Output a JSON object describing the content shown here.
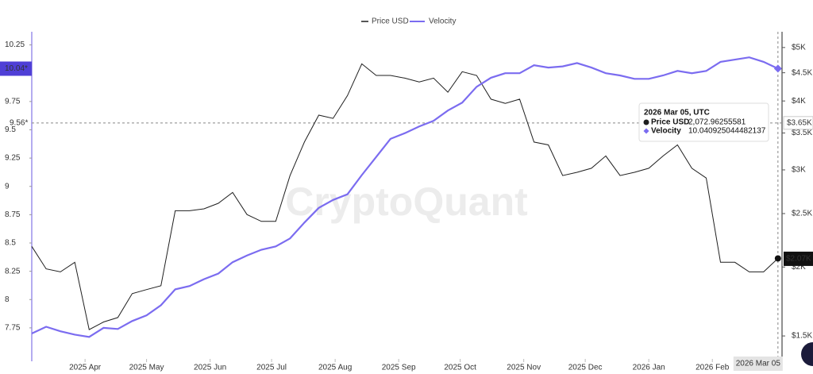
{
  "chart_data": {
    "type": "line",
    "watermark": "CryptoQuant",
    "x": [
      "2025-03-06",
      "2025-03-13",
      "2025-03-20",
      "2025-03-27",
      "2025-04-03",
      "2025-04-10",
      "2025-04-17",
      "2025-04-24",
      "2025-05-01",
      "2025-05-08",
      "2025-05-15",
      "2025-05-22",
      "2025-05-29",
      "2025-06-05",
      "2025-06-12",
      "2025-06-19",
      "2025-06-26",
      "2025-07-03",
      "2025-07-10",
      "2025-07-17",
      "2025-07-24",
      "2025-07-31",
      "2025-08-07",
      "2025-08-14",
      "2025-08-21",
      "2025-08-28",
      "2025-09-04",
      "2025-09-11",
      "2025-09-18",
      "2025-09-25",
      "2025-10-02",
      "2025-10-09",
      "2025-10-16",
      "2025-10-23",
      "2025-10-30",
      "2025-11-06",
      "2025-11-13",
      "2025-11-20",
      "2025-11-27",
      "2025-12-04",
      "2025-12-11",
      "2025-12-18",
      "2025-12-25",
      "2026-01-01",
      "2026-01-08",
      "2026-01-15",
      "2026-01-22",
      "2026-01-29",
      "2026-02-05",
      "2026-02-12",
      "2026-02-19",
      "2026-02-26",
      "2026-03-05"
    ],
    "xlim": [
      "2025-03-06",
      "2026-03-07"
    ],
    "xticks": [
      {
        "value": "2025-04-01",
        "label": "2025 Apr"
      },
      {
        "value": "2025-05-01",
        "label": "2025 May"
      },
      {
        "value": "2025-06-01",
        "label": "2025 Jun"
      },
      {
        "value": "2025-07-01",
        "label": "2025 Jul"
      },
      {
        "value": "2025-08-01",
        "label": "2025 Aug"
      },
      {
        "value": "2025-09-01",
        "label": "2025 Sep"
      },
      {
        "value": "2025-10-01",
        "label": "2025 Oct"
      },
      {
        "value": "2025-11-01",
        "label": "2025 Nov"
      },
      {
        "value": "2025-12-01",
        "label": "2025 Dec"
      },
      {
        "value": "2026-01-01",
        "label": "2026 Jan"
      },
      {
        "value": "2026-02-01",
        "label": "2026 Feb"
      }
    ],
    "ylim": [
      7.63,
      10.31
    ],
    "yticks": [
      7.75,
      8,
      8.25,
      8.5,
      8.75,
      9,
      9.25,
      9.5,
      9.75,
      10,
      10.25
    ],
    "y2lim": [
      1466,
      5200
    ],
    "y2log": true,
    "y2ticks": [
      {
        "value": 1500,
        "label": "$1.5K"
      },
      {
        "value": 2000,
        "label": "$2K"
      },
      {
        "value": 2500,
        "label": "$2.5K"
      },
      {
        "value": 3000,
        "label": "$3K"
      },
      {
        "value": 3500,
        "label": "$3.5K"
      },
      {
        "value": 4000,
        "label": "$4K"
      },
      {
        "value": 4500,
        "label": "$4.5K"
      },
      {
        "value": 5000,
        "label": "$5K"
      }
    ],
    "legend": "top",
    "series": [
      {
        "name": "Price USD",
        "color": "#1f1f1f",
        "axis": "y2",
        "values": [
          2180,
          1985,
          1960,
          2040,
          1540,
          1590,
          1620,
          1790,
          1820,
          1850,
          2530,
          2530,
          2550,
          2610,
          2730,
          2490,
          2420,
          2420,
          2930,
          3370,
          3770,
          3720,
          4090,
          4670,
          4450,
          4450,
          4400,
          4330,
          4400,
          4150,
          4520,
          4450,
          4030,
          3960,
          4030,
          3370,
          3330,
          2930,
          2970,
          3020,
          3180,
          2930,
          2970,
          3020,
          3180,
          3330,
          3020,
          2900,
          2040,
          2040,
          1960,
          1960,
          2072.96255581
        ]
      },
      {
        "name": "Velocity",
        "color": "#7b6cf0",
        "values": [
          7.7,
          7.76,
          7.72,
          7.69,
          7.67,
          7.75,
          7.74,
          7.81,
          7.86,
          7.95,
          8.09,
          8.12,
          8.18,
          8.23,
          8.33,
          8.39,
          8.44,
          8.47,
          8.54,
          8.68,
          8.81,
          8.88,
          8.93,
          9.1,
          9.26,
          9.42,
          9.47,
          9.53,
          9.58,
          9.67,
          9.74,
          9.88,
          9.96,
          10.0,
          10.0,
          10.07,
          10.05,
          10.06,
          10.09,
          10.05,
          10.0,
          9.98,
          9.95,
          9.95,
          9.98,
          10.02,
          10.0,
          10.02,
          10.1,
          10.12,
          10.14,
          10.1,
          10.040925044482137
        ]
      }
    ],
    "crosshair": {
      "x_label": "2026 Mar 05",
      "y": {
        "value": 9.56,
        "label": "9.56*"
      },
      "y2": {
        "value": 3650,
        "label": "$3.65K"
      }
    },
    "last_badges": {
      "y": {
        "value": 10.04,
        "label": "10.04*"
      },
      "y2": {
        "value": 2070,
        "label": "$2.07K"
      }
    },
    "tooltip": {
      "title": "2026 Mar 05, UTC",
      "rows": [
        {
          "name": "Price USD",
          "value": "2,072.96255581"
        },
        {
          "name": "Velocity",
          "value": "10.040925044482137"
        }
      ]
    }
  }
}
